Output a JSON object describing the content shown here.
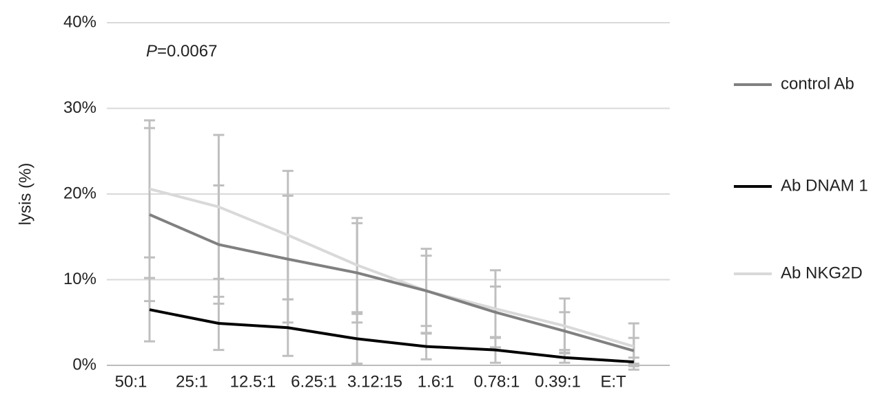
{
  "chart_data": {
    "type": "line",
    "y_label": "lysis (%)",
    "x_label": "E:T",
    "annotation": {
      "variable": "P",
      "value": "=0.0067"
    },
    "categories": [
      "50:1",
      "25:1",
      "12.5:1",
      "6.25:1",
      "3.12:15",
      "1.6:1",
      "0.78:1",
      "0.39:1"
    ],
    "series": [
      {
        "name": "control Ab",
        "color": "#808080",
        "values": [
          17.6,
          14.1,
          12.4,
          10.8,
          8.7,
          6.2,
          4.0,
          1.7
        ],
        "errors": [
          10.1,
          6.9,
          7.4,
          5.8,
          4.1,
          3.0,
          2.2,
          1.5
        ]
      },
      {
        "name": "Ab DNAM 1",
        "color": "#000000",
        "values": [
          6.5,
          4.9,
          4.4,
          3.1,
          2.2,
          1.8,
          0.9,
          0.4
        ],
        "errors": [
          3.7,
          3.1,
          3.3,
          2.9,
          1.5,
          1.5,
          0.6,
          0.5
        ]
      },
      {
        "name": "Ab NKG2D",
        "color": "#d9d9d9",
        "values": [
          20.6,
          18.5,
          15.2,
          11.7,
          8.7,
          6.6,
          4.6,
          2.2
        ],
        "errors": [
          8.0,
          8.4,
          7.5,
          5.5,
          4.9,
          4.5,
          3.2,
          2.7
        ]
      }
    ],
    "error_color": "#bfbfbf",
    "ylim": [
      0,
      40
    ],
    "yticks": [
      {
        "value": 0,
        "label": "0%"
      },
      {
        "value": 10,
        "label": "10%"
      },
      {
        "value": 20,
        "label": "20%"
      },
      {
        "value": 30,
        "label": "30%"
      },
      {
        "value": 40,
        "label": "40%"
      }
    ],
    "grid": true,
    "legend": "right"
  }
}
